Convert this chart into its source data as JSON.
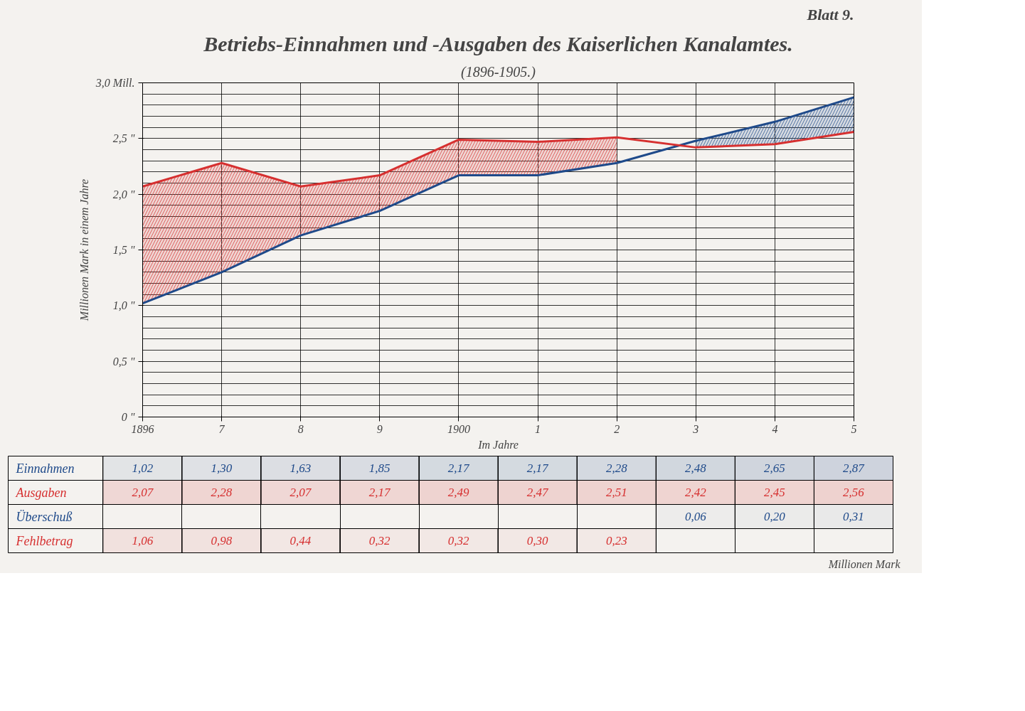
{
  "chart_data": [
    {
      "type": "line",
      "title": "Betriebs-Einnahmen und -Ausgaben des Kaiserlichen Kanalamtes.",
      "subtitle": "(1896-1905.)",
      "xlabel": "Im Jahre",
      "ylabel": "Millionen Mark in einem Jahre",
      "annotations": [
        "Blatt 9."
      ],
      "categories": [
        "1896",
        "7",
        "8",
        "9",
        "1900",
        "1",
        "2",
        "3",
        "4",
        "5"
      ],
      "ylim": [
        0,
        3.0
      ],
      "yticks": [
        {
          "value": 0,
          "label": "0 \""
        },
        {
          "value": 0.5,
          "label": "0,5 \""
        },
        {
          "value": 1.0,
          "label": "1,0 \""
        },
        {
          "value": 1.5,
          "label": "1,5 \""
        },
        {
          "value": 2.0,
          "label": "2,0 \""
        },
        {
          "value": 2.5,
          "label": "2,5 \""
        },
        {
          "value": 3.0,
          "label": "3,0 Mill."
        }
      ],
      "grid": true,
      "line_style": "solid",
      "series": [
        {
          "type": "line",
          "color": "#1f4a8a",
          "values": [
            1.02,
            1.3,
            1.63,
            1.85,
            2.17,
            2.17,
            2.28,
            2.48,
            2.65,
            2.87
          ],
          "lower": [
            null,
            null,
            null,
            null,
            null,
            null,
            null,
            2.42,
            2.45,
            2.56
          ],
          "upper": [
            null,
            null,
            null,
            null,
            null,
            null,
            null,
            2.48,
            2.65,
            2.87
          ]
        },
        {
          "type": "line",
          "color": "#d63030",
          "values": [
            2.07,
            2.28,
            2.07,
            2.17,
            2.49,
            2.47,
            2.51,
            2.42,
            2.45,
            2.56
          ],
          "lower": [
            1.02,
            1.3,
            1.63,
            1.85,
            2.17,
            2.17,
            2.28,
            null,
            null,
            null
          ],
          "upper": [
            2.07,
            2.28,
            2.07,
            2.17,
            2.49,
            2.47,
            2.51,
            null,
            null,
            null
          ]
        }
      ]
    },
    {
      "type": "heatmap",
      "annotations": [
        "Millionen Mark"
      ],
      "categories": [
        null,
        null,
        null,
        null,
        null,
        null,
        null,
        null,
        null,
        null
      ],
      "y_categories": [
        "Einnahmen",
        "Ausgaben",
        "Überschuß",
        "Fehlbetrag"
      ],
      "colors": [
        "#1f4a8a",
        "#d63030",
        "#1f4a8a",
        "#d63030"
      ],
      "cells": [
        [
          1.02,
          1.3,
          1.63,
          1.85,
          2.17,
          2.17,
          2.28,
          2.48,
          2.65,
          2.87
        ],
        [
          2.07,
          2.28,
          2.07,
          2.17,
          2.49,
          2.47,
          2.51,
          2.42,
          2.45,
          2.56
        ],
        [
          null,
          null,
          null,
          null,
          null,
          null,
          null,
          0.06,
          0.2,
          0.31
        ],
        [
          1.06,
          0.98,
          0.44,
          0.32,
          0.32,
          0.3,
          0.23,
          null,
          null,
          null
        ]
      ],
      "cell_labels": [
        [
          "1,02",
          "1,30",
          "1,63",
          "1,85",
          "2,17",
          "2,17",
          "2,28",
          "2,48",
          "2,65",
          "2,87"
        ],
        [
          "2,07",
          "2,28",
          "2,07",
          "2,17",
          "2,49",
          "2,47",
          "2,51",
          "2,42",
          "2,45",
          "2,56"
        ],
        [
          null,
          null,
          null,
          null,
          null,
          null,
          null,
          "0,06",
          "0,20",
          "0,31"
        ],
        [
          "1,06",
          "0,98",
          "0,44",
          "0,32",
          "0,32",
          "0,30",
          "0,23",
          null,
          null,
          null
        ]
      ]
    }
  ]
}
